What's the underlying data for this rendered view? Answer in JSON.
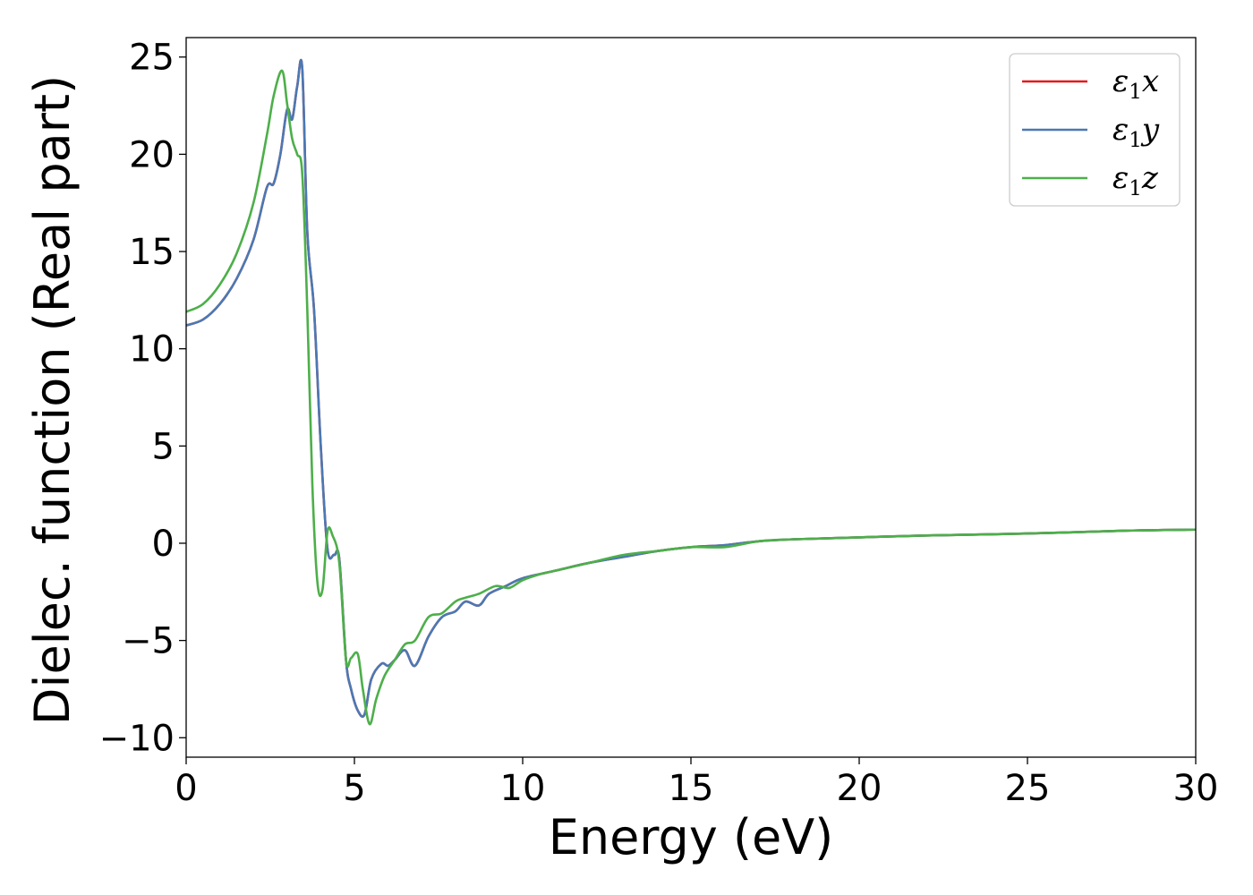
{
  "chart_data": {
    "type": "line",
    "title": "",
    "xlabel": "Energy (eV)",
    "ylabel": "Dielec. function (Real part)",
    "xlim": [
      0,
      30
    ],
    "ylim": [
      -11,
      26
    ],
    "xticks": [
      0,
      5,
      10,
      15,
      20,
      25,
      30
    ],
    "xtick_labels": [
      "0",
      "5",
      "10",
      "15",
      "20",
      "25",
      "30"
    ],
    "yticks": [
      -10,
      -5,
      0,
      5,
      10,
      15,
      20,
      25
    ],
    "ytick_labels": [
      "−10",
      "−5",
      "0",
      "5",
      "10",
      "15",
      "20",
      "25"
    ],
    "grid": false,
    "legend_position": "top-right",
    "series": [
      {
        "name": "ε1x",
        "legend_base": "ε",
        "legend_sub": "1",
        "legend_var": "x",
        "color": "#e41a1c",
        "x": [
          0,
          0.5,
          1.0,
          1.5,
          2.0,
          2.4,
          2.6,
          2.8,
          3.0,
          3.15,
          3.3,
          3.45,
          3.6,
          3.8,
          4.0,
          4.2,
          4.4,
          4.55,
          4.75,
          4.9,
          5.1,
          5.3,
          5.5,
          5.8,
          6.0,
          6.2,
          6.5,
          6.8,
          7.2,
          7.6,
          8.0,
          8.3,
          8.7,
          9.0,
          9.5,
          10,
          11,
          12,
          13,
          14,
          15,
          16,
          17,
          18,
          20,
          22,
          25,
          28,
          30
        ],
        "y": [
          11.2,
          11.5,
          12.3,
          13.6,
          15.6,
          18.3,
          18.5,
          20.0,
          22.3,
          21.8,
          23.5,
          24.4,
          16.0,
          12.0,
          5.0,
          -0.3,
          -0.6,
          -0.8,
          -6.0,
          -7.5,
          -8.6,
          -8.8,
          -7.0,
          -6.2,
          -6.3,
          -6.0,
          -5.5,
          -6.3,
          -4.8,
          -3.8,
          -3.5,
          -3.0,
          -3.2,
          -2.6,
          -2.2,
          -1.8,
          -1.4,
          -1.0,
          -0.7,
          -0.4,
          -0.2,
          -0.1,
          0.1,
          0.2,
          0.3,
          0.4,
          0.5,
          0.65,
          0.7
        ]
      },
      {
        "name": "ε1y",
        "legend_base": "ε",
        "legend_sub": "1",
        "legend_var": "y",
        "color": "#4a79b4",
        "x": [
          0,
          0.5,
          1.0,
          1.5,
          2.0,
          2.4,
          2.6,
          2.8,
          3.0,
          3.15,
          3.3,
          3.45,
          3.6,
          3.8,
          4.0,
          4.2,
          4.4,
          4.55,
          4.75,
          4.9,
          5.1,
          5.3,
          5.5,
          5.8,
          6.0,
          6.2,
          6.5,
          6.8,
          7.2,
          7.6,
          8.0,
          8.3,
          8.7,
          9.0,
          9.5,
          10,
          11,
          12,
          13,
          14,
          15,
          16,
          17,
          18,
          20,
          22,
          25,
          28,
          30
        ],
        "y": [
          11.2,
          11.5,
          12.3,
          13.6,
          15.6,
          18.3,
          18.5,
          20.0,
          22.3,
          21.8,
          23.5,
          24.4,
          16.0,
          12.0,
          5.0,
          -0.3,
          -0.6,
          -0.8,
          -6.0,
          -7.5,
          -8.6,
          -8.8,
          -7.0,
          -6.2,
          -6.3,
          -6.0,
          -5.5,
          -6.3,
          -4.8,
          -3.8,
          -3.5,
          -3.0,
          -3.2,
          -2.6,
          -2.2,
          -1.8,
          -1.4,
          -1.0,
          -0.7,
          -0.4,
          -0.2,
          -0.1,
          0.1,
          0.2,
          0.3,
          0.4,
          0.5,
          0.65,
          0.7
        ]
      },
      {
        "name": "ε1z",
        "legend_base": "ε",
        "legend_sub": "1",
        "legend_var": "z",
        "color": "#4daf4a",
        "x": [
          0,
          0.5,
          1.0,
          1.5,
          2.0,
          2.4,
          2.6,
          2.85,
          3.0,
          3.15,
          3.3,
          3.45,
          3.6,
          3.75,
          3.9,
          4.05,
          4.2,
          4.35,
          4.55,
          4.75,
          4.9,
          5.1,
          5.25,
          5.45,
          5.65,
          5.9,
          6.2,
          6.5,
          6.8,
          7.2,
          7.6,
          8.0,
          8.3,
          8.7,
          9.2,
          9.6,
          10,
          10.5,
          11,
          12,
          13,
          14,
          15,
          16,
          17,
          18,
          20,
          22,
          25,
          28,
          30
        ],
        "y": [
          11.9,
          12.3,
          13.3,
          14.9,
          17.5,
          21.0,
          23.0,
          24.3,
          22.6,
          20.8,
          20.0,
          19.0,
          12.0,
          3.0,
          -2.0,
          -2.4,
          0.6,
          0.4,
          -1.0,
          -6.0,
          -5.9,
          -5.7,
          -7.5,
          -9.3,
          -8.0,
          -6.8,
          -6.0,
          -5.2,
          -5.0,
          -3.8,
          -3.6,
          -3.0,
          -2.8,
          -2.6,
          -2.2,
          -2.3,
          -1.9,
          -1.6,
          -1.4,
          -1.0,
          -0.6,
          -0.4,
          -0.2,
          -0.2,
          0.1,
          0.2,
          0.3,
          0.4,
          0.5,
          0.65,
          0.7
        ]
      }
    ]
  }
}
